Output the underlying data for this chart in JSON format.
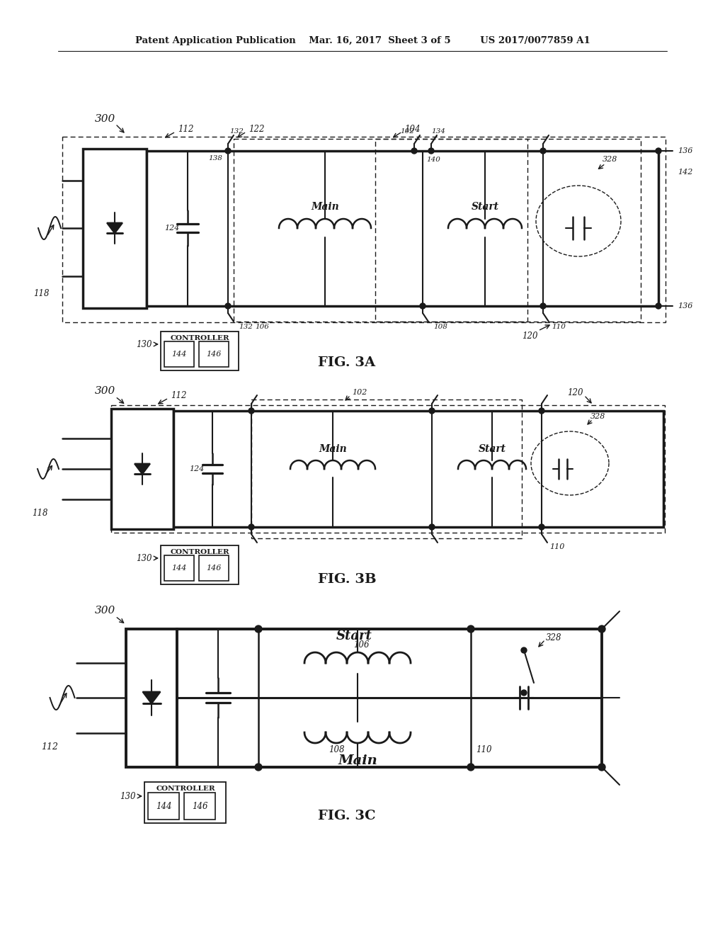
{
  "bg_color": "#ffffff",
  "header": "Patent Application Publication    Mar. 16, 2017  Sheet 3 of 5         US 2017/0077859 A1",
  "fig3a": "FIG. 3A",
  "fig3b": "FIG. 3B",
  "fig3c": "FIG. 3C",
  "lc": "#1a1a1a"
}
